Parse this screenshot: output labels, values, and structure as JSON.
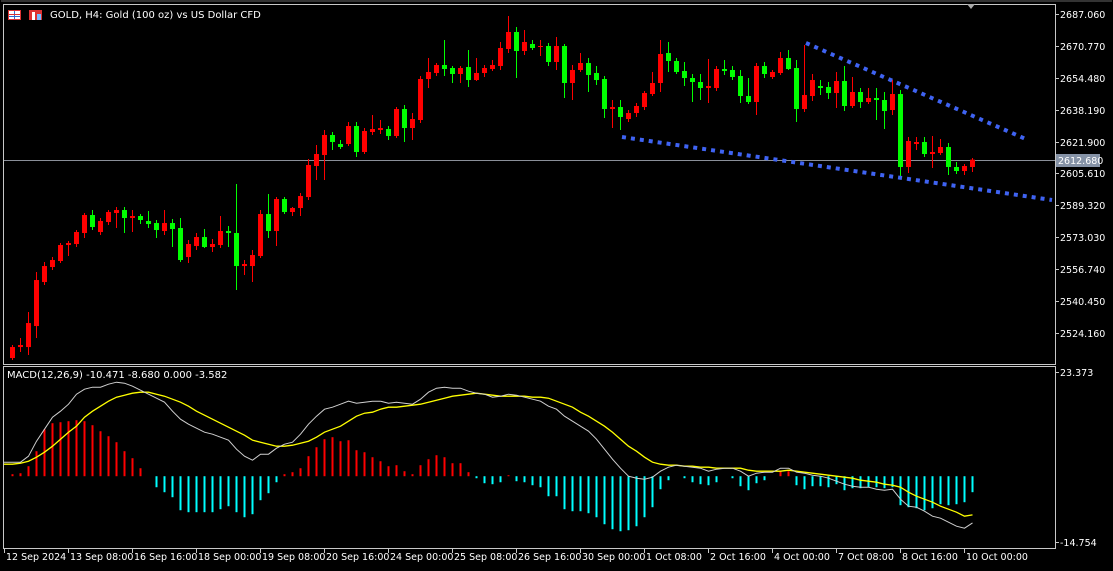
{
  "window": {
    "title": "GOLD, H4:  Gold (100 oz) vs US Dollar CFD",
    "icons": [
      "table-icon",
      "chart-icon"
    ]
  },
  "colors": {
    "background": "#000000",
    "bull_candle": "#ff0000",
    "bear_candle": "#00ff00",
    "trendline": "#3f63f2",
    "price_line": "#8a8f99",
    "macd_line": "#d0d0d0",
    "signal_line": "#ffff00",
    "hist_positive": "#ff0000",
    "hist_negative": "#00ffff"
  },
  "macd_label": "MACD(12,26,9) -10.471 -8.680 0.000 -3.582",
  "chart_data": [
    {
      "type": "candlestick",
      "symbol": "GOLD",
      "timeframe": "H4",
      "price_axis_ticks": [
        2687.06,
        2670.77,
        2654.48,
        2638.19,
        2621.9,
        2605.61,
        2589.32,
        2573.03,
        2556.74,
        2540.45,
        2524.16
      ],
      "price_axis_labels": [
        "2687.060",
        "2670.770",
        "2654.480",
        "2638.190",
        "2621.900",
        "2605.610",
        "2589.320",
        "2573.030",
        "2556.740",
        "2540.450",
        "2524.160"
      ],
      "current_price": 2612.68,
      "current_price_label": "2612.680",
      "time_labels": [
        "12 Sep 2024",
        "13 Sep 08:00",
        "16 Sep 16:00",
        "18 Sep 00:00",
        "19 Sep 08:00",
        "20 Sep 16:00",
        "24 Sep 00:00",
        "25 Sep 08:00",
        "26 Sep 16:00",
        "30 Sep 00:00",
        "1 Oct 08:00",
        "2 Oct 16:00",
        "4 Oct 00:00",
        "7 Oct 08:00",
        "8 Oct 16:00",
        "10 Oct 00:00"
      ],
      "time_label_every_bars": 8,
      "ohlc_fields": [
        "open",
        "high",
        "low",
        "close"
      ],
      "candles": [
        [
          2511.38,
          2518.02,
          2510.36,
          2516.99
        ],
        [
          2516.99,
          2521.59,
          2514.44,
          2518.02
        ],
        [
          2516.99,
          2534.87,
          2512.91,
          2529.25
        ],
        [
          2527.72,
          2555.3,
          2521.59,
          2551.21
        ],
        [
          2550.19,
          2560.41,
          2548.66,
          2558.36
        ],
        [
          2557.85,
          2562.96,
          2556.32,
          2561.43
        ],
        [
          2560.92,
          2570.11,
          2559.9,
          2569.09
        ],
        [
          2569.09,
          2571.13,
          2563.47,
          2570.11
        ],
        [
          2569.6,
          2576.75,
          2568.07,
          2575.73
        ],
        [
          2575.22,
          2585.43,
          2572.66,
          2584.41
        ],
        [
          2584.41,
          2586.96,
          2576.75,
          2578.28
        ],
        [
          2575.73,
          2582.88,
          2574.2,
          2581.35
        ],
        [
          2580.83,
          2586.96,
          2579.3,
          2585.94
        ],
        [
          2585.43,
          2588.49,
          2577.77,
          2586.96
        ],
        [
          2586.96,
          2588.49,
          2575.22,
          2582.88
        ],
        [
          2582.88,
          2586.96,
          2575.73,
          2583.9
        ],
        [
          2583.9,
          2584.92,
          2579.81,
          2581.86
        ],
        [
          2581.35,
          2586.45,
          2577.77,
          2579.81
        ],
        [
          2580.32,
          2581.86,
          2572.66,
          2576.75
        ],
        [
          2576.24,
          2586.96,
          2574.2,
          2580.32
        ],
        [
          2580.32,
          2582.37,
          2568.07,
          2577.26
        ],
        [
          2577.77,
          2582.88,
          2560.41,
          2561.43
        ],
        [
          2562.96,
          2571.64,
          2559.9,
          2569.6
        ],
        [
          2568.58,
          2575.22,
          2566.54,
          2573.17
        ],
        [
          2573.17,
          2577.26,
          2567.56,
          2568.07
        ],
        [
          2568.07,
          2572.15,
          2565.51,
          2569.6
        ],
        [
          2569.09,
          2583.9,
          2567.56,
          2576.24
        ],
        [
          2576.24,
          2578.79,
          2568.07,
          2575.22
        ],
        [
          2575.22,
          2600.24,
          2546.11,
          2558.36
        ],
        [
          2558.36,
          2561.43,
          2553.77,
          2559.39
        ],
        [
          2558.36,
          2566.54,
          2550.19,
          2563.98
        ],
        [
          2563.47,
          2586.96,
          2562.45,
          2584.92
        ],
        [
          2584.92,
          2595.15,
          2572.66,
          2576.24
        ],
        [
          2576.24,
          2593.6,
          2568.58,
          2592.58
        ],
        [
          2592.58,
          2593.6,
          2584.92,
          2585.94
        ],
        [
          2585.94,
          2588.49,
          2583.9,
          2587.98
        ],
        [
          2587.98,
          2595.66,
          2583.9,
          2594.11
        ],
        [
          2593.6,
          2613.01,
          2592.07,
          2609.95
        ],
        [
          2609.44,
          2620.16,
          2602.28,
          2615.56
        ],
        [
          2615.05,
          2627.82,
          2602.28,
          2625.27
        ],
        [
          2625.27,
          2626.8,
          2617.61,
          2621.69
        ],
        [
          2620.67,
          2622.71,
          2618.12,
          2619.14
        ],
        [
          2620.67,
          2631.91,
          2619.65,
          2629.86
        ],
        [
          2629.86,
          2631.91,
          2614.03,
          2616.59
        ],
        [
          2616.59,
          2628.84,
          2615.56,
          2627.31
        ],
        [
          2626.8,
          2635.48,
          2625.27,
          2628.33
        ],
        [
          2627.82,
          2632.93,
          2625.78,
          2628.84
        ],
        [
          2628.33,
          2629.86,
          2622.71,
          2624.76
        ],
        [
          2624.76,
          2639.56,
          2623.73,
          2638.54
        ],
        [
          2638.54,
          2640.59,
          2621.69,
          2628.84
        ],
        [
          2628.84,
          2636.5,
          2622.71,
          2633.44
        ],
        [
          2632.93,
          2655.4,
          2631.39,
          2653.86
        ],
        [
          2653.86,
          2664.59,
          2649.27,
          2657.44
        ],
        [
          2656.93,
          2662.04,
          2655.4,
          2661.01
        ],
        [
          2661.01,
          2673.78,
          2655.4,
          2658.97
        ],
        [
          2659.48,
          2660.5,
          2651.82,
          2656.42
        ],
        [
          2656.42,
          2660.5,
          2651.82,
          2659.48
        ],
        [
          2659.99,
          2668.68,
          2649.78,
          2653.35
        ],
        [
          2653.35,
          2664.59,
          2652.84,
          2656.93
        ],
        [
          2656.93,
          2661.01,
          2654.89,
          2659.48
        ],
        [
          2658.97,
          2663.57,
          2657.95,
          2661.01
        ],
        [
          2660.5,
          2672.76,
          2658.46,
          2669.7
        ],
        [
          2669.19,
          2686.04,
          2667.14,
          2677.87
        ],
        [
          2677.87,
          2680.42,
          2654.37,
          2668.17
        ],
        [
          2668.17,
          2678.89,
          2666.12,
          2672.76
        ],
        [
          2671.74,
          2673.78,
          2668.68,
          2669.7
        ],
        [
          2670.21,
          2673.78,
          2665.61,
          2670.72
        ],
        [
          2670.72,
          2672.25,
          2660.5,
          2662.55
        ],
        [
          2662.55,
          2675.31,
          2658.46,
          2670.72
        ],
        [
          2670.72,
          2671.74,
          2644.16,
          2651.82
        ],
        [
          2651.82,
          2661.01,
          2643.14,
          2658.46
        ],
        [
          2658.46,
          2667.14,
          2657.44,
          2662.04
        ],
        [
          2662.04,
          2664.59,
          2647.23,
          2655.91
        ],
        [
          2656.93,
          2660.5,
          2650.8,
          2653.35
        ],
        [
          2653.86,
          2655.4,
          2633.95,
          2638.54
        ],
        [
          2638.54,
          2643.14,
          2628.84,
          2639.56
        ],
        [
          2639.56,
          2643.14,
          2627.82,
          2634.46
        ],
        [
          2633.44,
          2638.03,
          2631.91,
          2636.5
        ],
        [
          2636.5,
          2641.61,
          2634.46,
          2640.08
        ],
        [
          2639.56,
          2647.74,
          2638.03,
          2646.71
        ],
        [
          2646.2,
          2657.44,
          2645.18,
          2651.82
        ],
        [
          2651.82,
          2673.78,
          2647.23,
          2666.63
        ],
        [
          2667.14,
          2672.76,
          2657.44,
          2663.06
        ],
        [
          2663.06,
          2664.59,
          2656.42,
          2657.44
        ],
        [
          2657.95,
          2662.55,
          2650.29,
          2654.37
        ],
        [
          2654.37,
          2656.42,
          2642.12,
          2652.33
        ],
        [
          2652.33,
          2656.42,
          2643.14,
          2649.27
        ],
        [
          2649.27,
          2664.08,
          2641.61,
          2650.29
        ],
        [
          2649.27,
          2660.5,
          2647.74,
          2658.97
        ],
        [
          2658.97,
          2663.57,
          2655.91,
          2657.95
        ],
        [
          2658.46,
          2660.5,
          2653.35,
          2654.89
        ],
        [
          2655.4,
          2658.46,
          2641.61,
          2645.18
        ],
        [
          2645.18,
          2654.37,
          2641.1,
          2642.12
        ],
        [
          2642.12,
          2662.04,
          2635.48,
          2660.5
        ],
        [
          2660.5,
          2662.55,
          2654.37,
          2656.42
        ],
        [
          2654.89,
          2658.46,
          2653.86,
          2657.44
        ],
        [
          2656.93,
          2667.65,
          2655.91,
          2664.59
        ],
        [
          2664.59,
          2668.68,
          2658.46,
          2658.97
        ],
        [
          2659.48,
          2663.57,
          2631.91,
          2638.54
        ],
        [
          2638.54,
          2671.23,
          2637.01,
          2645.69
        ],
        [
          2645.18,
          2656.42,
          2642.63,
          2653.35
        ],
        [
          2650.29,
          2653.35,
          2645.69,
          2649.27
        ],
        [
          2649.78,
          2652.33,
          2643.65,
          2646.71
        ],
        [
          2646.71,
          2657.44,
          2639.05,
          2652.84
        ],
        [
          2652.84,
          2660.5,
          2637.52,
          2640.08
        ],
        [
          2640.08,
          2654.89,
          2639.05,
          2647.23
        ],
        [
          2647.23,
          2649.27,
          2639.05,
          2642.12
        ],
        [
          2642.12,
          2649.27,
          2641.1,
          2644.16
        ],
        [
          2644.16,
          2649.27,
          2632.93,
          2643.14
        ],
        [
          2643.14,
          2647.23,
          2628.33,
          2637.52
        ],
        [
          2638.03,
          2653.35,
          2635.48,
          2646.2
        ],
        [
          2646.2,
          2648.25,
          2603.82,
          2608.93
        ],
        [
          2608.93,
          2624.25,
          2605.86,
          2622.2
        ],
        [
          2620.67,
          2624.25,
          2617.61,
          2621.69
        ],
        [
          2621.69,
          2624.25,
          2614.03,
          2615.56
        ],
        [
          2615.56,
          2624.76,
          2608.41,
          2616.59
        ],
        [
          2616.08,
          2623.22,
          2615.05,
          2619.14
        ],
        [
          2619.14,
          2621.18,
          2604.84,
          2608.93
        ],
        [
          2608.93,
          2611.48,
          2605.35,
          2606.88
        ],
        [
          2606.88,
          2610.46,
          2604.84,
          2609.44
        ],
        [
          2608.93,
          2613.52,
          2606.37,
          2612.68
        ]
      ],
      "trendlines": [
        {
          "style": "dotted",
          "from": {
            "bar": 99.25,
            "price": 2672.25
          },
          "to": {
            "bar": 127,
            "price": 2622.71
          }
        },
        {
          "style": "dotted",
          "from": {
            "bar": 76.25,
            "price": 2624.25
          },
          "to": {
            "bar": 130,
            "price": 2592.07
          }
        }
      ]
    },
    {
      "type": "line",
      "indicator": "MACD",
      "params": [
        12,
        26,
        9
      ],
      "axis_labels": [
        "23.373",
        "-14.754"
      ],
      "ylim": [
        -14.754,
        23.373
      ],
      "macd": [
        3.14,
        3.14,
        4.49,
        7.85,
        10.54,
        13.23,
        14.58,
        16.15,
        18.39,
        19.51,
        19.96,
        19.96,
        20.64,
        21.08,
        20.86,
        20.19,
        19.29,
        18.39,
        17.5,
        16.6,
        14.58,
        12.79,
        11.66,
        10.77,
        9.87,
        9.42,
        8.75,
        8.07,
        6.06,
        4.49,
        3.59,
        4.93,
        4.93,
        6.28,
        7.18,
        7.63,
        9.42,
        11.66,
        13.46,
        15.03,
        15.48,
        16.15,
        16.82,
        16.37,
        16.6,
        16.82,
        16.82,
        16.37,
        16.6,
        16.37,
        16.15,
        17.27,
        18.84,
        19.74,
        19.96,
        19.74,
        19.74,
        19.07,
        18.62,
        18.39,
        17.72,
        17.94,
        18.39,
        18.17,
        17.72,
        17.27,
        16.82,
        15.7,
        15.03,
        13.46,
        12.34,
        11.22,
        10.09,
        8.3,
        6.06,
        3.81,
        1.79,
        0.0,
        -0.45,
        -0.67,
        -0.22,
        1.12,
        2.02,
        2.47,
        2.24,
        2.02,
        1.79,
        1.12,
        1.57,
        1.79,
        1.79,
        1.12,
        0.0,
        0.67,
        0.9,
        0.9,
        1.79,
        1.79,
        0.9,
        0.67,
        0.22,
        0.0,
        -0.45,
        -1.12,
        -1.79,
        -2.24,
        -2.47,
        -2.47,
        -2.92,
        -3.14,
        -2.92,
        -5.16,
        -6.73,
        -6.95,
        -7.85,
        -8.97,
        -9.42,
        -10.32,
        -11.22,
        -11.66,
        -10.471
      ],
      "signal": [
        2.69,
        2.92,
        3.36,
        4.26,
        5.38,
        6.73,
        8.3,
        9.87,
        11.22,
        13.23,
        14.58,
        15.7,
        16.82,
        17.72,
        18.17,
        18.62,
        18.84,
        18.84,
        18.39,
        17.94,
        17.27,
        16.6,
        15.7,
        14.58,
        13.68,
        12.79,
        11.89,
        10.99,
        10.09,
        9.2,
        8.07,
        7.63,
        7.18,
        6.73,
        6.73,
        6.95,
        7.4,
        7.85,
        8.75,
        9.87,
        10.54,
        11.22,
        12.34,
        13.46,
        14.13,
        14.36,
        15.03,
        15.48,
        15.48,
        15.7,
        15.93,
        16.15,
        16.6,
        17.05,
        17.5,
        17.94,
        18.17,
        18.39,
        18.62,
        18.39,
        18.17,
        17.94,
        17.94,
        17.94,
        17.94,
        17.72,
        17.72,
        17.5,
        16.82,
        16.15,
        15.48,
        14.36,
        13.46,
        12.34,
        11.22,
        9.87,
        8.3,
        6.73,
        5.61,
        4.26,
        3.14,
        2.69,
        2.47,
        2.47,
        2.24,
        2.24,
        2.02,
        2.02,
        1.79,
        1.79,
        1.79,
        1.79,
        1.35,
        1.12,
        1.12,
        1.12,
        1.12,
        1.35,
        1.12,
        0.9,
        0.67,
        0.45,
        0.22,
        0.0,
        -0.22,
        -0.45,
        -0.9,
        -1.12,
        -1.35,
        -1.79,
        -2.02,
        -2.47,
        -3.59,
        -4.49,
        -5.16,
        -5.83,
        -6.73,
        -7.4,
        -8.07,
        -8.97,
        -8.68
      ],
      "histogram": [
        0.45,
        0.67,
        2.24,
        5.61,
        10.54,
        11.89,
        12.11,
        12.34,
        12.56,
        12.34,
        11.44,
        10.09,
        8.97,
        7.63,
        5.61,
        4.04,
        1.79,
        0,
        -2.47,
        -3.59,
        -4.71,
        -7.63,
        -8.07,
        -8.07,
        -8.07,
        -8.07,
        -7.4,
        -6.73,
        -8.07,
        -9.2,
        -8.52,
        -5.38,
        -3.81,
        -1.35,
        0.45,
        0.9,
        1.79,
        4.49,
        6.5,
        8.3,
        8.75,
        7.85,
        8.07,
        5.83,
        5.38,
        4.26,
        3.36,
        2.24,
        2.47,
        1.12,
        0.45,
        2.47,
        3.81,
        4.71,
        4.26,
        2.92,
        2.92,
        0.9,
        -0.45,
        -1.57,
        -1.79,
        -1.35,
        0.22,
        -1.12,
        -1.35,
        -2.02,
        -2.47,
        -4.49,
        -4.49,
        -7.4,
        -7.85,
        -7.85,
        -8.3,
        -9.2,
        -10.77,
        -11.89,
        -12.34,
        -12.11,
        -11.22,
        -9.2,
        -6.95,
        -2.92,
        -0.9,
        0,
        -0.45,
        -1.35,
        -1.79,
        -2.02,
        -1.35,
        0,
        -0.45,
        -2.24,
        -3.14,
        -1.57,
        -0.9,
        0,
        1.12,
        1.12,
        -2.02,
        -2.92,
        -2.24,
        -2.24,
        -2.47,
        -1.79,
        -3.14,
        -2.69,
        -2.69,
        -2.47,
        -2.47,
        -2.69,
        -2.47,
        -6.5,
        -6.95,
        -7.18,
        -7.63,
        -7.18,
        -6.28,
        -6.5,
        -6.28,
        -5.83,
        -3.582
      ]
    }
  ]
}
